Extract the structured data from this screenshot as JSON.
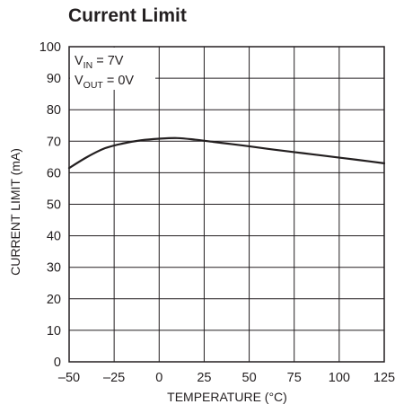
{
  "chart_data": {
    "type": "line",
    "title": "Current Limit",
    "xlabel": "TEMPERATURE (°C)",
    "ylabel": "CURRENT LIMIT (mA)",
    "xlim": [
      -50,
      125
    ],
    "ylim": [
      0,
      100
    ],
    "xticks": [
      "–50",
      "–25",
      "0",
      "25",
      "50",
      "75",
      "100",
      "125"
    ],
    "yticks": [
      "0",
      "10",
      "20",
      "30",
      "40",
      "50",
      "60",
      "70",
      "80",
      "90",
      "100"
    ],
    "grid": true,
    "annotations": [
      {
        "prefix": "V",
        "sub": "IN",
        "suffix": " = 7V"
      },
      {
        "prefix": "V",
        "sub": "OUT",
        "suffix": " = 0V"
      }
    ],
    "series": [
      {
        "x": [
          -50,
          -40,
          -30,
          -20,
          -10,
          0,
          10,
          20,
          30,
          40,
          50,
          60,
          70,
          80,
          90,
          100,
          110,
          125
        ],
        "values": [
          61.5,
          65,
          67.8,
          69.3,
          70.3,
          70.8,
          71,
          70.5,
          69.8,
          69.1,
          68.4,
          67.6,
          66.9,
          66.2,
          65.5,
          64.8,
          64.1,
          63
        ]
      }
    ],
    "line_color": "#231f20",
    "grid_color": "#231f20"
  }
}
